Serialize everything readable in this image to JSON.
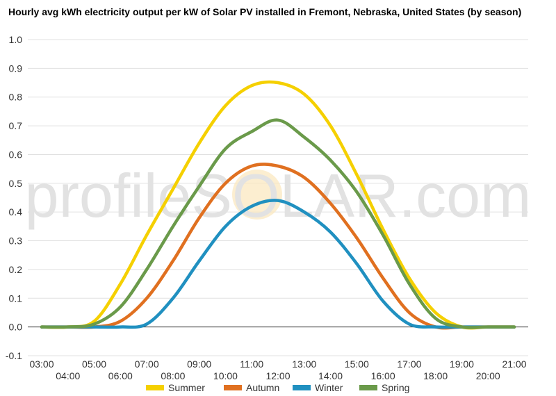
{
  "chart_data": {
    "type": "line",
    "title": "Hourly avg kWh electricity output per kW of Solar PV installed in Fremont, Nebraska, United States (by season)",
    "watermark": "profileSOLAR.com",
    "x": [
      "03:00",
      "04:00",
      "05:00",
      "06:00",
      "07:00",
      "08:00",
      "09:00",
      "10:00",
      "11:00",
      "12:00",
      "13:00",
      "14:00",
      "15:00",
      "16:00",
      "17:00",
      "18:00",
      "19:00",
      "20:00",
      "21:00"
    ],
    "ylim": [
      -0.1,
      1.0
    ],
    "yticks": [
      "-0.1",
      "0.0",
      "0.1",
      "0.2",
      "0.3",
      "0.4",
      "0.5",
      "0.6",
      "0.7",
      "0.8",
      "0.9",
      "1.0"
    ],
    "grid": true,
    "legend": "bottom",
    "series": [
      {
        "name": "Summer",
        "color": "#f5d000",
        "values": [
          0.0,
          0.0,
          0.02,
          0.15,
          0.32,
          0.48,
          0.64,
          0.77,
          0.84,
          0.85,
          0.81,
          0.7,
          0.53,
          0.34,
          0.17,
          0.05,
          0.0,
          0.0,
          0.0
        ]
      },
      {
        "name": "Autumn",
        "color": "#e07020",
        "values": [
          0.0,
          0.0,
          0.0,
          0.02,
          0.1,
          0.23,
          0.38,
          0.5,
          0.56,
          0.56,
          0.52,
          0.43,
          0.31,
          0.17,
          0.05,
          0.0,
          0.0,
          0.0,
          0.0
        ]
      },
      {
        "name": "Winter",
        "color": "#2090c0",
        "values": [
          0.0,
          0.0,
          0.0,
          0.0,
          0.01,
          0.1,
          0.23,
          0.35,
          0.42,
          0.44,
          0.4,
          0.33,
          0.22,
          0.09,
          0.01,
          0.0,
          0.0,
          0.0,
          0.0
        ]
      },
      {
        "name": "Spring",
        "color": "#6a9a4a",
        "values": [
          0.0,
          0.0,
          0.01,
          0.07,
          0.2,
          0.35,
          0.49,
          0.62,
          0.68,
          0.72,
          0.66,
          0.58,
          0.47,
          0.32,
          0.15,
          0.03,
          0.0,
          0.0,
          0.0
        ]
      }
    ]
  }
}
